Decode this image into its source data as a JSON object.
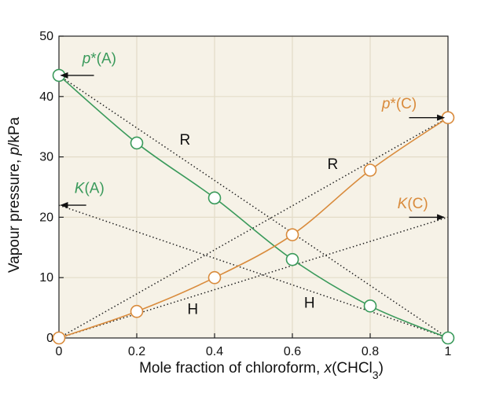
{
  "chart_data": {
    "type": "line",
    "xlabel": "Mole fraction of chloroform, x(CHCl3)",
    "xlabel_parts": {
      "prefix": "Mole fraction of chloroform, ",
      "var": "x",
      "open": "(CHCl",
      "sub": "3",
      "close": ")"
    },
    "ylabel": "Vapour pressure, p/kPa",
    "ylabel_parts": {
      "prefix": "Vapour pressure, ",
      "var": "p",
      "suffix": "/kPa"
    },
    "xlim": [
      0,
      1
    ],
    "ylim": [
      0,
      50
    ],
    "x_ticks": [
      0,
      0.2,
      0.4,
      0.6,
      0.8,
      1
    ],
    "x_tick_labels": [
      "0",
      "0.2",
      "0.4",
      "0.6",
      "0.8",
      "1"
    ],
    "y_ticks": [
      0,
      10,
      20,
      30,
      40,
      50
    ],
    "y_tick_labels": [
      "0",
      "10",
      "20",
      "30",
      "40",
      "50"
    ],
    "grid": true,
    "series": [
      {
        "color": "#3a9a5b",
        "x": [
          0,
          0.2,
          0.4,
          0.6,
          0.8,
          1
        ],
        "y": [
          43.5,
          32.3,
          23.2,
          13.0,
          5.3,
          0
        ]
      },
      {
        "color": "#d98b3c",
        "x": [
          0,
          0.2,
          0.4,
          0.6,
          0.8,
          1
        ],
        "y": [
          0,
          4.4,
          10.0,
          17.1,
          27.8,
          36.5
        ]
      }
    ],
    "reference_lines": [
      {
        "x": [
          0,
          1
        ],
        "y": [
          43.5,
          0
        ]
      },
      {
        "x": [
          0,
          1
        ],
        "y": [
          0,
          36.5
        ]
      },
      {
        "x": [
          0,
          1
        ],
        "y": [
          22.0,
          0
        ]
      },
      {
        "x": [
          0,
          1
        ],
        "y": [
          0,
          20.0
        ]
      }
    ],
    "annotations": [
      {
        "id": "pA",
        "base": "p",
        "suffix": "*(A)",
        "color": "#3a9a5b",
        "x": 0.06,
        "y": 45.5,
        "arrow": {
          "from": [
            0.09,
            43.5
          ],
          "to": [
            0.005,
            43.5
          ]
        }
      },
      {
        "id": "KA",
        "base": "K",
        "suffix": "(A)",
        "color": "#3a9a5b",
        "x": 0.04,
        "y": 24.0,
        "arrow": {
          "from": [
            0.07,
            22.0
          ],
          "to": [
            0.005,
            22.0
          ]
        }
      },
      {
        "id": "pC",
        "base": "p",
        "suffix": "*(C)",
        "color": "#d98b3c",
        "x": 0.83,
        "y": 38.0,
        "arrow": {
          "from": [
            0.9,
            36.5
          ],
          "to": [
            0.99,
            36.5
          ]
        }
      },
      {
        "id": "KC",
        "base": "K",
        "suffix": "(C)",
        "color": "#d98b3c",
        "x": 0.87,
        "y": 21.5,
        "arrow": {
          "from": [
            0.9,
            20.0
          ],
          "to": [
            0.99,
            20.0
          ]
        }
      },
      {
        "id": "R1",
        "text": "R",
        "color": "#111111",
        "x": 0.31,
        "y": 32.0
      },
      {
        "id": "R2",
        "text": "R",
        "color": "#111111",
        "x": 0.69,
        "y": 28.0
      },
      {
        "id": "H1",
        "text": "H",
        "color": "#111111",
        "x": 0.33,
        "y": 4.0
      },
      {
        "id": "H2",
        "text": "H",
        "color": "#111111",
        "x": 0.63,
        "y": 5.0
      }
    ]
  }
}
